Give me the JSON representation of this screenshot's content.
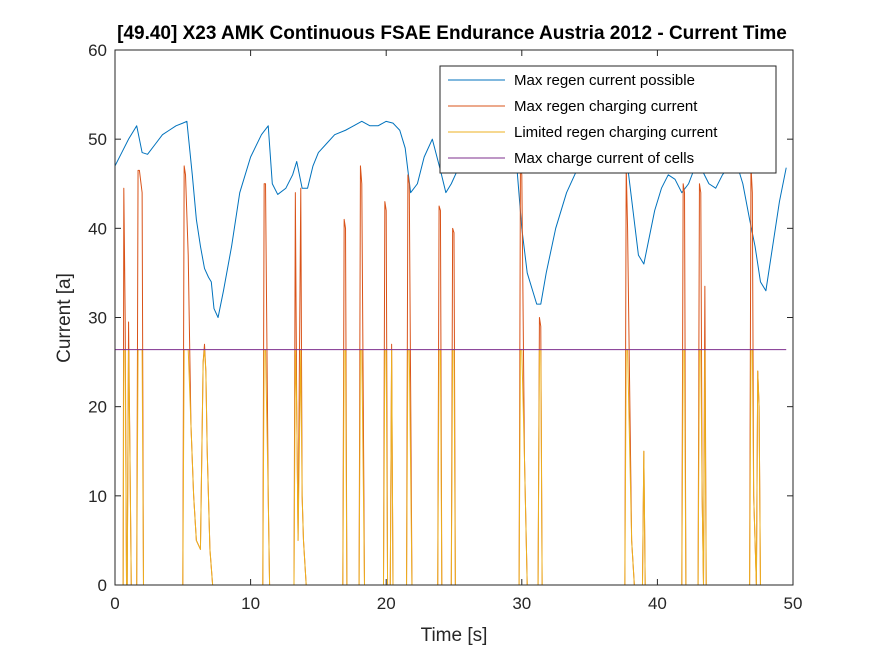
{
  "chart_data": {
    "type": "line",
    "title": "[49.40] X23 AMK Continuous  FSAE Endurance Austria 2012 - Current Time",
    "xlabel": "Time [s]",
    "ylabel": "Current [a]",
    "xlim": [
      0,
      50
    ],
    "ylim": [
      0,
      60
    ],
    "xticks": [
      0,
      10,
      20,
      30,
      40,
      50
    ],
    "yticks": [
      0,
      10,
      20,
      30,
      40,
      50,
      60
    ],
    "xtick_labels": [
      "0",
      "10",
      "20",
      "30",
      "40",
      "50"
    ],
    "ytick_labels": [
      "0",
      "10",
      "20",
      "30",
      "40",
      "50",
      "60"
    ],
    "grid": false,
    "legend_location": "top-right",
    "series": [
      {
        "name": "Max regen current possible",
        "color": "#0072BD",
        "x": [
          0,
          0.5,
          1,
          1.6,
          2,
          2.4,
          3,
          3.5,
          4,
          4.5,
          5,
          5.3,
          5.7,
          6,
          6.3,
          6.6,
          6.9,
          7.1,
          7.3,
          7.6,
          8,
          8.6,
          9.2,
          10,
          10.8,
          11.3,
          11.6,
          12,
          12.6,
          13.1,
          13.4,
          13.8,
          14.2,
          14.6,
          15,
          15.6,
          16.2,
          17,
          17.6,
          18.2,
          18.8,
          19.4,
          20,
          20.5,
          21,
          21.4,
          21.8,
          22.3,
          22.8,
          23.4,
          24,
          24.4,
          24.8,
          25.4,
          26,
          26.6,
          27.2,
          27.8,
          28.4,
          29,
          29.6,
          30,
          30.4,
          30.8,
          31.1,
          31.4,
          31.8,
          32.5,
          33.3,
          34.2,
          35,
          35.8,
          36.6,
          37.3,
          37.8,
          38.2,
          38.6,
          39,
          39.4,
          39.8,
          40.3,
          40.8,
          41.3,
          41.8,
          42.3,
          42.8,
          43.3,
          43.8,
          44.3,
          44.8,
          45.3,
          45.8,
          46.3,
          46.8,
          47.2,
          47.6,
          48,
          48.5,
          49,
          49.5
        ],
        "y": [
          47,
          48.5,
          50,
          51.5,
          48.5,
          48.3,
          49.5,
          50.5,
          51,
          51.5,
          51.8,
          52,
          46,
          41,
          38,
          35.5,
          34.5,
          34,
          31,
          30,
          33,
          38,
          44,
          48,
          50.5,
          51.5,
          45,
          43.8,
          44.5,
          46,
          47.5,
          44.5,
          44.5,
          47,
          48.5,
          49.5,
          50.5,
          51,
          51.5,
          52,
          51.5,
          51.5,
          52,
          51.8,
          51,
          49,
          44,
          45,
          48,
          50,
          46.5,
          44,
          45,
          47,
          48.5,
          49,
          49.5,
          49,
          48.5,
          48,
          47.5,
          40,
          35,
          33,
          31.5,
          31.5,
          35,
          40,
          44,
          47,
          49,
          50.5,
          51,
          50,
          47,
          42,
          37,
          36,
          39,
          42,
          44.5,
          46,
          45.5,
          44,
          45,
          47,
          46.5,
          45,
          44.5,
          46,
          47,
          47.5,
          45,
          41,
          38,
          34,
          33,
          38,
          43,
          46.8
        ]
      },
      {
        "name": "Max regen charging current",
        "color": "#D95319",
        "x": [
          0,
          0.6,
          0.65,
          0.75,
          0.85,
          0.9,
          1.0,
          1.1,
          1.2,
          1.6,
          1.7,
          1.8,
          2.0,
          2.1,
          5.0,
          5.1,
          5.2,
          5.4,
          5.6,
          5.8,
          6.0,
          6.3,
          6.5,
          6.6,
          6.7,
          6.8,
          7.0,
          7.2,
          10.9,
          11.0,
          11.1,
          11.3,
          11.4,
          13.2,
          13.3,
          13.4,
          13.5,
          13.7,
          13.8,
          13.9,
          14.1,
          14.2,
          16.8,
          16.9,
          17.0,
          17.1,
          18.0,
          18.1,
          18.2,
          18.4,
          19.8,
          19.9,
          20.0,
          20.1,
          20.3,
          20.4,
          20.5,
          21.5,
          21.6,
          21.7,
          21.9,
          23.8,
          23.9,
          24.0,
          24.1,
          24.8,
          24.9,
          25.0,
          25.1,
          29.8,
          29.9,
          30.0,
          30.2,
          30.4,
          31.2,
          31.3,
          31.4,
          31.5,
          37.6,
          37.7,
          37.8,
          38.1,
          38.3,
          38.9,
          39.0,
          39.1,
          41.8,
          41.9,
          42.0,
          42.1,
          43.0,
          43.1,
          43.2,
          43.3,
          43.4,
          43.5,
          43.6,
          46.8,
          46.9,
          47.0,
          47.1,
          47.3,
          47.4,
          47.5,
          47.6
        ],
        "y": [
          0,
          0,
          44.5,
          30,
          0,
          0,
          29.5,
          15,
          0,
          0,
          46.5,
          46.5,
          44,
          0,
          0,
          47,
          46,
          37,
          18,
          10,
          5,
          4,
          25,
          27,
          24,
          15,
          4,
          0,
          0,
          45,
          45,
          10,
          0,
          0,
          44,
          20,
          5,
          44.5,
          10,
          5,
          0,
          0,
          0,
          41,
          40,
          0,
          0,
          47,
          45,
          0,
          0,
          43,
          42,
          0,
          0,
          27,
          0,
          0,
          46,
          45,
          0,
          0,
          42.5,
          42,
          0,
          0,
          40,
          39.5,
          0,
          0,
          47,
          46,
          14,
          0,
          0,
          30,
          29,
          0,
          0,
          47,
          40,
          5,
          0,
          0,
          15,
          0,
          0,
          45,
          44,
          0,
          0,
          45,
          44,
          10,
          0,
          33.5,
          0,
          0,
          47,
          44,
          10,
          0,
          24,
          20,
          0
        ]
      },
      {
        "name": "Limited regen charging current",
        "color": "#EDB120",
        "x": [
          0,
          0.6,
          0.65,
          0.75,
          0.85,
          0.9,
          1.0,
          1.1,
          1.2,
          1.6,
          1.7,
          1.8,
          2.0,
          2.1,
          5.0,
          5.1,
          5.2,
          5.4,
          5.6,
          5.8,
          6.0,
          6.3,
          6.5,
          6.6,
          6.7,
          6.8,
          7.0,
          7.2,
          10.9,
          11.0,
          11.1,
          11.3,
          11.4,
          13.2,
          13.3,
          13.4,
          13.5,
          13.7,
          13.8,
          13.9,
          14.1,
          14.2,
          16.8,
          16.9,
          17.0,
          17.1,
          18.0,
          18.1,
          18.2,
          18.4,
          19.8,
          19.9,
          20.0,
          20.1,
          20.3,
          20.4,
          20.5,
          21.5,
          21.6,
          21.7,
          21.9,
          23.8,
          23.9,
          24.0,
          24.1,
          24.8,
          24.9,
          25.0,
          25.1,
          29.8,
          29.9,
          30.0,
          30.2,
          30.4,
          31.2,
          31.3,
          31.4,
          31.5,
          37.6,
          37.7,
          37.8,
          38.1,
          38.3,
          38.9,
          39.0,
          39.1,
          41.8,
          41.9,
          42.0,
          42.1,
          43.0,
          43.1,
          43.2,
          43.3,
          43.4,
          43.5,
          43.6,
          46.8,
          46.9,
          47.0,
          47.1,
          47.3,
          47.4,
          47.5,
          47.6
        ],
        "y": [
          0,
          0,
          26.4,
          26.4,
          0,
          0,
          26.4,
          15,
          0,
          0,
          26.4,
          26.4,
          26.4,
          0,
          0,
          26.4,
          26.4,
          26.4,
          18,
          10,
          5,
          4,
          25,
          26.4,
          24,
          15,
          4,
          0,
          0,
          26.4,
          26.4,
          10,
          0,
          0,
          26.4,
          20,
          5,
          26.4,
          10,
          5,
          0,
          0,
          0,
          26.4,
          26.4,
          0,
          0,
          26.4,
          26.4,
          0,
          0,
          26.4,
          26.4,
          0,
          0,
          26.4,
          0,
          0,
          26.4,
          26.4,
          0,
          0,
          26.4,
          26.4,
          0,
          0,
          26.4,
          26.4,
          0,
          0,
          26.4,
          26.4,
          14,
          0,
          0,
          26.4,
          26.4,
          0,
          0,
          26.4,
          26.4,
          5,
          0,
          0,
          15,
          0,
          0,
          26.4,
          26.4,
          0,
          0,
          26.4,
          26.4,
          10,
          0,
          26.4,
          0,
          0,
          26.4,
          26.4,
          10,
          0,
          24,
          20,
          0
        ]
      },
      {
        "name": "Max charge current of cells",
        "color": "#7E2F8E",
        "x": [
          0,
          49.5
        ],
        "y": [
          26.4,
          26.4
        ]
      }
    ]
  }
}
